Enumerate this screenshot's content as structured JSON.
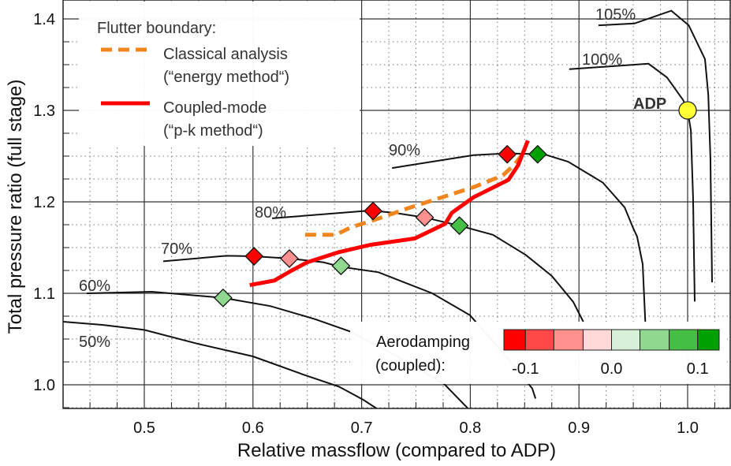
{
  "chart_data": {
    "type": "line",
    "title": "",
    "xlabel": "Relative massflow (compared to ADP)",
    "ylabel": "Total pressure ratio (full stage)",
    "xlim": [
      0.4253,
      1.039
    ],
    "ylim": [
      0.974,
      1.42
    ],
    "grid": true,
    "x_ticks": [
      0.5,
      0.6,
      0.7,
      0.8,
      0.9,
      1.0
    ],
    "x_tick_labels": [
      "0.5",
      "0.6",
      "0.7",
      "0.8",
      "0.9",
      "1.0"
    ],
    "y_ticks": [
      1.0,
      1.1,
      1.2,
      1.3,
      1.4
    ],
    "y_tick_labels": [
      "1.0",
      "1.1",
      "1.2",
      "1.3",
      "1.4"
    ],
    "speedlines": [
      {
        "label": "105%",
        "points": [
          [
            0.918,
            1.393
          ],
          [
            0.951,
            1.395
          ],
          [
            0.985,
            1.409
          ],
          [
            1.001,
            1.393
          ],
          [
            1.016,
            1.356
          ],
          [
            1.019,
            1.317
          ],
          [
            1.021,
            1.248
          ],
          [
            1.0225,
            1.112
          ]
        ]
      },
      {
        "label": "100%",
        "points": [
          [
            0.891,
            1.345
          ],
          [
            0.964,
            1.351
          ],
          [
            0.981,
            1.336
          ],
          [
            0.996,
            1.311
          ],
          [
            1.0,
            1.3
          ],
          [
            1.003,
            1.278
          ],
          [
            1.005,
            1.205
          ],
          [
            1.0065,
            1.091
          ]
        ]
      },
      {
        "label": "90%",
        "points": [
          [
            0.728,
            1.237
          ],
          [
            0.803,
            1.251
          ],
          [
            0.834,
            1.253
          ],
          [
            0.868,
            1.252
          ],
          [
            0.89,
            1.244
          ],
          [
            0.922,
            1.221
          ],
          [
            0.942,
            1.194
          ],
          [
            0.95,
            1.171
          ],
          [
            0.9535,
            1.162
          ],
          [
            0.9586,
            1.132
          ],
          [
            0.961,
            1.069
          ]
        ]
      },
      {
        "label": "80%",
        "points": [
          [
            0.6176,
            1.182
          ],
          [
            0.708,
            1.1905
          ],
          [
            0.73,
            1.188
          ],
          [
            0.7576,
            1.183
          ],
          [
            0.79,
            1.174
          ],
          [
            0.8208,
            1.164
          ],
          [
            0.851,
            1.142
          ],
          [
            0.875,
            1.119
          ],
          [
            0.8948,
            1.0905
          ],
          [
            0.904,
            1.069
          ]
        ]
      },
      {
        "label": "70%",
        "points": [
          [
            0.5174,
            1.135
          ],
          [
            0.5755,
            1.141
          ],
          [
            0.601,
            1.1405
          ],
          [
            0.6335,
            1.138
          ],
          [
            0.6647,
            1.134
          ],
          [
            0.681,
            1.129
          ],
          [
            0.7155,
            1.123
          ],
          [
            0.765,
            1.1
          ],
          [
            0.7997,
            1.076
          ],
          [
            0.8316,
            1.033
          ],
          [
            0.857,
            0.996
          ],
          [
            0.86,
            0.985
          ]
        ]
      },
      {
        "label": "60%",
        "points": [
          [
            0.447,
            1.1
          ],
          [
            0.507,
            1.1017
          ],
          [
            0.5726,
            1.095
          ],
          [
            0.616,
            1.086
          ],
          [
            0.6575,
            1.0716
          ],
          [
            0.6887,
            1.0586
          ],
          [
            0.73,
            1.033
          ],
          [
            0.7758,
            1.001
          ],
          [
            0.798,
            0.974
          ]
        ]
      },
      {
        "label": "50%",
        "points": [
          [
            0.425,
            1.069
          ],
          [
            0.4615,
            1.0655
          ],
          [
            0.5,
            1.06
          ],
          [
            0.5486,
            1.045
          ],
          [
            0.6,
            1.031
          ],
          [
            0.6466,
            1.011
          ],
          [
            0.679,
            0.998
          ],
          [
            0.701,
            0.984
          ],
          [
            0.714,
            0.974
          ]
        ]
      }
    ],
    "series": [
      {
        "name": "Classical analysis (“energy method“)",
        "color": "#f0851e",
        "dashed": true,
        "points": [
          [
            0.648,
            1.164
          ],
          [
            0.676,
            1.164
          ],
          [
            0.69,
            1.172
          ],
          [
            0.716,
            1.182
          ],
          [
            0.745,
            1.194
          ],
          [
            0.774,
            1.205
          ],
          [
            0.803,
            1.216
          ],
          [
            0.83,
            1.229
          ],
          [
            0.84,
            1.24
          ],
          [
            0.848,
            1.252
          ],
          [
            0.851,
            1.258
          ]
        ]
      },
      {
        "name": "Coupled-mode (“p-k method“)",
        "color": "#ff0000",
        "dashed": false,
        "points": [
          [
            0.597,
            1.109
          ],
          [
            0.6197,
            1.114
          ],
          [
            0.6357,
            1.125
          ],
          [
            0.65,
            1.134
          ],
          [
            0.679,
            1.145
          ],
          [
            0.708,
            1.153
          ],
          [
            0.749,
            1.16
          ],
          [
            0.777,
            1.176
          ],
          [
            0.783,
            1.188
          ],
          [
            0.803,
            1.205
          ],
          [
            0.835,
            1.224
          ],
          [
            0.844,
            1.24
          ],
          [
            0.853,
            1.267
          ]
        ]
      }
    ],
    "damping_points": [
      {
        "speed": "60%",
        "x": 0.5725,
        "y": 1.095,
        "damping": 0.04
      },
      {
        "speed": "70%",
        "x": 0.601,
        "y": 1.1405,
        "damping": -0.11
      },
      {
        "speed": "70%",
        "x": 0.6335,
        "y": 1.138,
        "damping": -0.04
      },
      {
        "speed": "70%",
        "x": 0.681,
        "y": 1.13,
        "damping": 0.04
      },
      {
        "speed": "80%",
        "x": 0.7105,
        "y": 1.19,
        "damping": -0.11
      },
      {
        "speed": "80%",
        "x": 0.758,
        "y": 1.183,
        "damping": -0.04
      },
      {
        "speed": "80%",
        "x": 0.79,
        "y": 1.174,
        "damping": 0.08
      },
      {
        "speed": "90%",
        "x": 0.834,
        "y": 1.252,
        "damping": -0.11
      },
      {
        "speed": "90%",
        "x": 0.862,
        "y": 1.252,
        "damping": 0.11
      }
    ],
    "adp": {
      "label": "ADP",
      "x": 1.0,
      "y": 1.3,
      "color": "#ffff33"
    },
    "legend": {
      "title": "Flutter boundary:",
      "entries": [
        {
          "line1": "Classical analysis",
          "line2": "(“energy method“)",
          "color": "#f0851e",
          "dashed": true
        },
        {
          "line1": "Coupled-mode",
          "line2": "(“p-k method“)",
          "color": "#ff0000",
          "dashed": false
        }
      ],
      "placement": "top-left"
    },
    "colorbar": {
      "title_line1": "Aerodamping",
      "title_line2": "(coupled):",
      "colors": [
        "#ff0000",
        "#ff4848",
        "#ff9090",
        "#ffd8d8",
        "#d8f0d8",
        "#90d890",
        "#44bf44",
        "#00a000"
      ],
      "bounds": [
        -0.125,
        -0.1,
        -0.067,
        -0.033,
        0.0,
        0.033,
        0.067,
        0.1,
        0.125
      ],
      "tick_values": [
        -0.1,
        0.0,
        0.1
      ],
      "tick_labels": [
        "-0.1",
        "0.0",
        "0.1"
      ],
      "placement": "bottom-right"
    }
  }
}
